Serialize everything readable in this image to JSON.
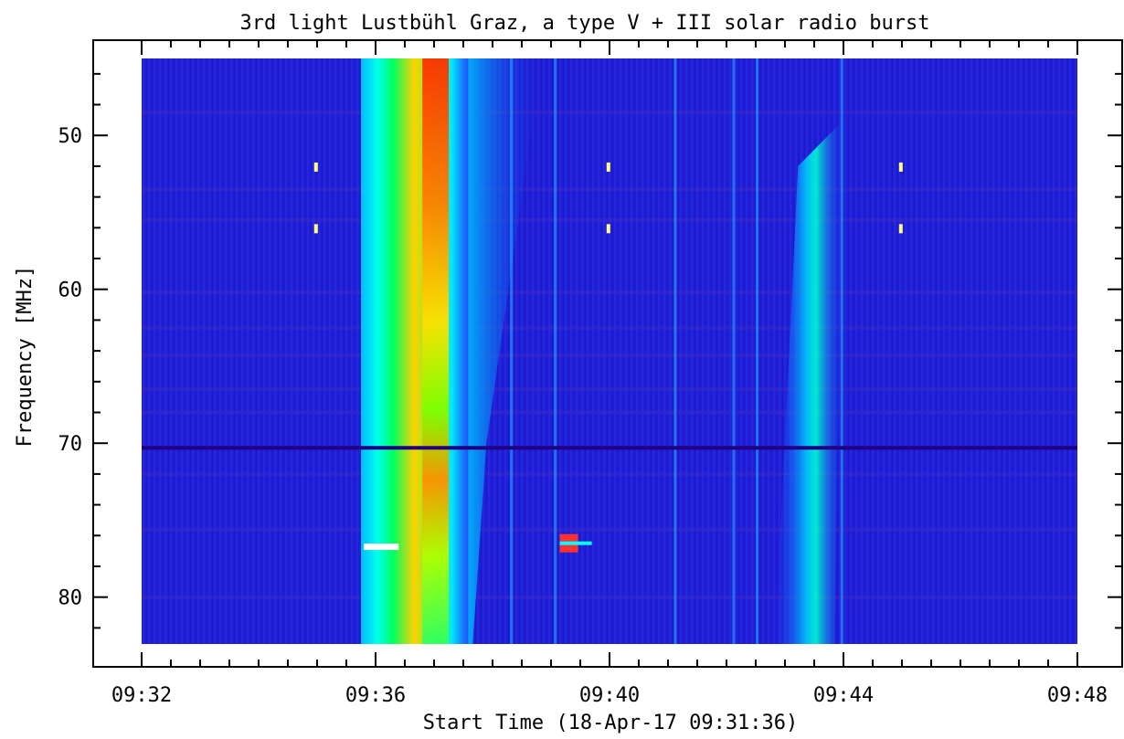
{
  "chart_data": {
    "type": "heatmap",
    "title": "3rd light Lustbühl Graz, a type V + III solar radio burst",
    "xlabel": "Start Time (18-Apr-17 09:31:36)",
    "ylabel": "Frequency [MHz]",
    "x_ticks": [
      "09:32",
      "09:36",
      "09:40",
      "09:44",
      "09:48"
    ],
    "x_tick_minutes": [
      32,
      36,
      40,
      44,
      48
    ],
    "y_ticks": [
      50,
      60,
      70,
      80
    ],
    "xlim": [
      "09:32",
      "09:48"
    ],
    "ylim": [
      45,
      82
    ],
    "y_inverted": true,
    "colormap": "rainbow (blue low → red high)",
    "colors": {
      "background": "#1f1fd8",
      "low": "#0a0aa8",
      "mid": "#00e0ff",
      "high": "#ff2000"
    },
    "features": [
      {
        "label": "type V burst",
        "start": "09:35:45",
        "end": "09:37:35",
        "freq_range": [
          45,
          82
        ],
        "peak_intensity": "high"
      },
      {
        "label": "type III burst",
        "start": "09:42:50",
        "end": "09:44:00",
        "freq_range": [
          45,
          82
        ],
        "peak_intensity": "medium"
      },
      {
        "label": "interference line",
        "freq": 70.3
      }
    ]
  }
}
